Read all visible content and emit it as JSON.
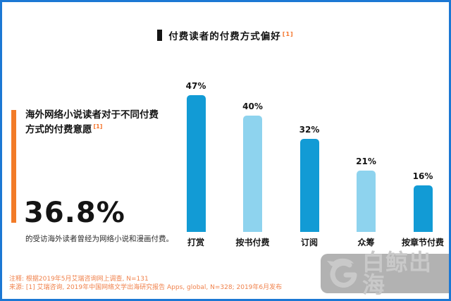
{
  "title": {
    "text": "付费读者的付费方式偏好",
    "ref": "[1]"
  },
  "left_panel": {
    "heading": "海外网络小说读者对于不同付费方式的付费意愿",
    "heading_ref": "[1]",
    "stat_value": "36.8%",
    "stat_caption": "的受访海外读者曾经为网络小说和漫画付费。"
  },
  "chart_data": {
    "type": "bar",
    "title": "付费读者的付费方式偏好 [1]",
    "categories": [
      "打赏",
      "按书付费",
      "订阅",
      "众筹",
      "按章节付费"
    ],
    "values": [
      47,
      40,
      32,
      21,
      16
    ],
    "value_labels": [
      "47%",
      "40%",
      "32%",
      "21%",
      "16%"
    ],
    "bar_colors": [
      "#129bd5",
      "#8ed3ee",
      "#129bd5",
      "#8ed3ee",
      "#129bd5"
    ],
    "xlabel": "",
    "ylabel": "",
    "ylim": [
      0,
      50
    ],
    "grid": false,
    "legend": "none",
    "value_labels_position": "above-bar"
  },
  "footnotes": {
    "note": "注释: 根据2019年5月艾瑞咨询网上调查, N=131",
    "source": "来源: [1] 艾瑞咨询, 2019年中国网络文学出海研究报告 Apps, global, N=328; 2019年6月发布"
  },
  "logo": {
    "text": "白鲸出海",
    "icon": "whale-swirl-icon"
  },
  "colors": {
    "frame_border": "#1c78d4",
    "bar_dark_blue": "#129bd5",
    "bar_light_blue": "#8ed3ee",
    "accent_orange": "#f27b28",
    "footnote_orange": "#f0824c",
    "text_black": "#141414",
    "logo_bg_gray": "#b2b2b2",
    "logo_fg_gray": "#c9c9c9"
  }
}
